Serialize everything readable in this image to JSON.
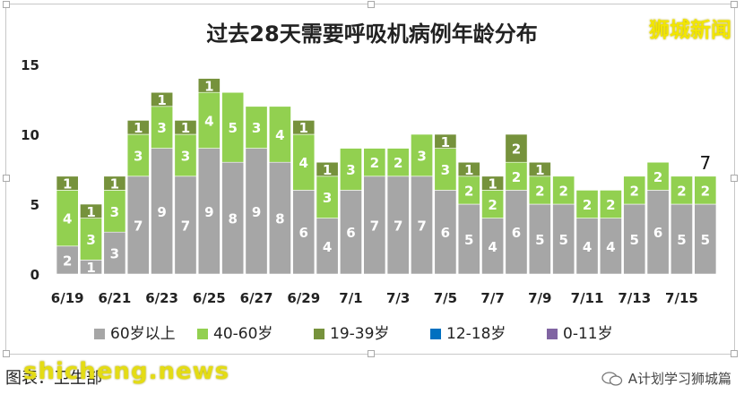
{
  "brand": "狮城新闻",
  "caption_left": "图表：卫生部",
  "watermark_site": "shicheng.news",
  "caption_right": "A计划学习狮城篇",
  "chart_data": {
    "type": "bar",
    "title": "过去28天需要呼吸机病例年龄分布",
    "xlabel": "",
    "ylabel": "",
    "ylim": [
      0,
      15
    ],
    "yticks": [
      0,
      5,
      10,
      15
    ],
    "grid": false,
    "legend_position": "bottom",
    "stacked": true,
    "categories": [
      "6/19",
      "6/20",
      "6/21",
      "6/22",
      "6/23",
      "6/24",
      "6/25",
      "6/26",
      "6/27",
      "6/28",
      "6/29",
      "6/30",
      "7/1",
      "7/2",
      "7/3",
      "7/4",
      "7/5",
      "7/6",
      "7/7",
      "7/8",
      "7/9",
      "7/10",
      "7/11",
      "7/12",
      "7/13",
      "7/14",
      "7/15",
      "7/16"
    ],
    "tick_labels": [
      "6/19",
      "",
      "6/21",
      "",
      "6/23",
      "",
      "6/25",
      "",
      "6/27",
      "",
      "6/29",
      "",
      "7/1",
      "",
      "7/3",
      "",
      "7/5",
      "",
      "7/7",
      "",
      "7/9",
      "",
      "7/11",
      "",
      "7/13",
      "",
      "7/15",
      ""
    ],
    "series": [
      {
        "name": "60岁以上",
        "color": "#a6a6a6",
        "values": [
          2,
          1,
          3,
          7,
          9,
          7,
          9,
          8,
          9,
          8,
          6,
          4,
          6,
          7,
          7,
          7,
          6,
          5,
          4,
          6,
          5,
          5,
          4,
          4,
          5,
          6,
          5,
          5
        ]
      },
      {
        "name": "40-60岁",
        "color": "#92d050",
        "values": [
          4,
          3,
          3,
          3,
          3,
          3,
          4,
          5,
          3,
          4,
          4,
          3,
          3,
          2,
          2,
          3,
          3,
          2,
          2,
          2,
          2,
          2,
          2,
          2,
          2,
          2,
          2,
          2
        ]
      },
      {
        "name": "19-39岁",
        "color": "#76923c",
        "values": [
          1,
          1,
          1,
          1,
          1,
          1,
          1,
          0,
          0,
          0,
          1,
          1,
          0,
          0,
          0,
          0,
          1,
          1,
          1,
          2,
          1,
          0,
          0,
          0,
          0,
          0,
          0,
          0
        ]
      },
      {
        "name": "12-18岁",
        "color": "#0070c0",
        "values": [
          0,
          0,
          0,
          0,
          0,
          0,
          0,
          0,
          0,
          0,
          0,
          0,
          0,
          0,
          0,
          0,
          0,
          0,
          0,
          0,
          0,
          0,
          0,
          0,
          0,
          0,
          0,
          0
        ]
      },
      {
        "name": "0-11岁",
        "color": "#8064a2",
        "values": [
          0,
          0,
          0,
          0,
          0,
          0,
          0,
          0,
          0,
          0,
          0,
          0,
          0,
          0,
          0,
          0,
          0,
          0,
          0,
          0,
          0,
          0,
          0,
          0,
          0,
          0,
          0,
          0
        ]
      }
    ],
    "annotations": [
      {
        "category": "7/16",
        "text": "7"
      }
    ]
  }
}
